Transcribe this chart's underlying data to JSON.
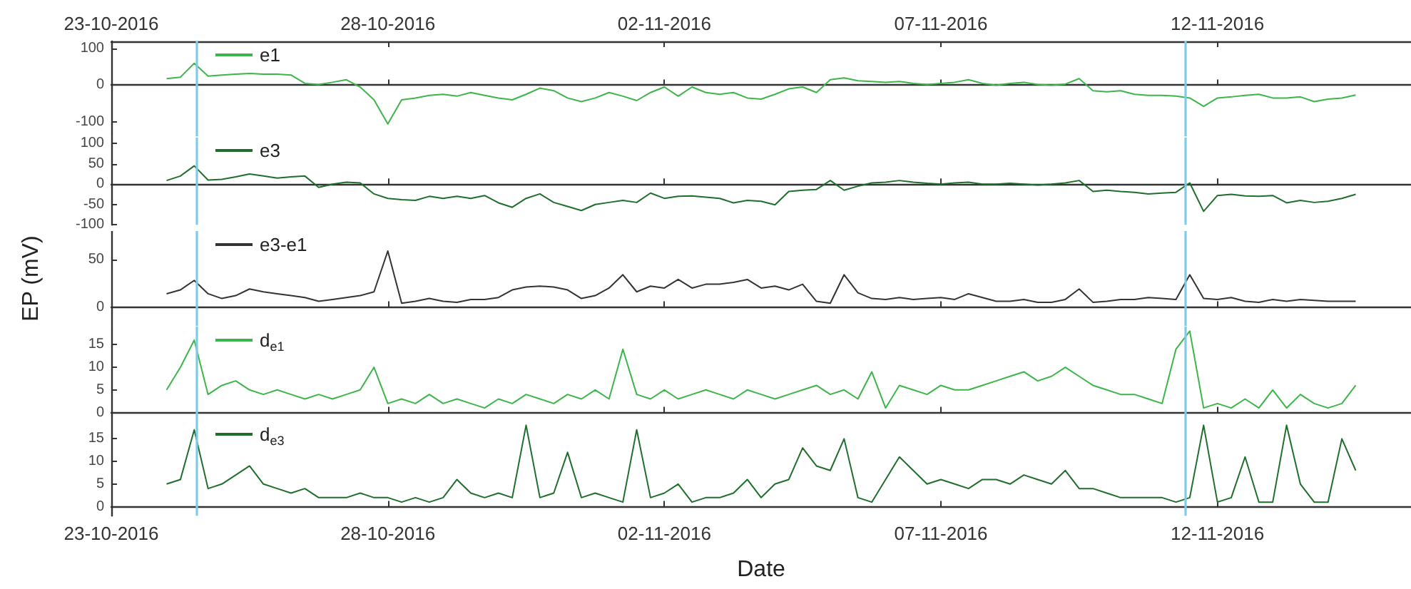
{
  "chart_data": [
    {
      "type": "line",
      "legend": "top left",
      "tick_labels": "y",
      "xlim": [
        "2016-10-23",
        "2016-11-15T12:00"
      ],
      "xticks": [
        {
          "value": "2016-10-23",
          "label": null
        },
        {
          "value": "2016-10-28",
          "label": null
        },
        {
          "value": "2016-11-02",
          "label": null
        },
        {
          "value": "2016-11-07",
          "label": null
        },
        {
          "value": "2016-11-12",
          "label": null
        }
      ],
      "x2lim": [
        "2016-10-23",
        "2016-11-15T12:00"
      ],
      "x2ticks": [
        {
          "value": "2016-10-23",
          "label": "23-10-2016"
        },
        {
          "value": "2016-10-28",
          "label": "28-10-2016"
        },
        {
          "value": "2016-11-02",
          "label": "02-11-2016"
        },
        {
          "value": "2016-11-07",
          "label": "07-11-2016"
        },
        {
          "value": "2016-11-12",
          "label": "12-11-2016"
        }
      ],
      "ylim": [
        -140,
        120
      ],
      "yticks": [
        -100,
        0,
        100
      ],
      "ref_lines": [
        {
          "axis": "x",
          "value": "2016-10-24T13:00",
          "color": "#7ecbe6"
        },
        {
          "axis": "x",
          "value": "2016-11-11T10:00",
          "color": "#7ecbe6"
        }
      ],
      "x": [
        "2016-10-24T00:00",
        "2016-10-24T06:00",
        "2016-10-24T12:00",
        "2016-10-24T18:00",
        "2016-10-25T00:00",
        "2016-10-25T06:00",
        "2016-10-25T12:00",
        "2016-10-25T18:00",
        "2016-10-26T00:00",
        "2016-10-26T06:00",
        "2016-10-26T12:00",
        "2016-10-26T18:00",
        "2016-10-27T00:00",
        "2016-10-27T06:00",
        "2016-10-27T12:00",
        "2016-10-27T18:00",
        "2016-10-28T00:00",
        "2016-10-28T06:00",
        "2016-10-28T12:00",
        "2016-10-28T18:00",
        "2016-10-29T00:00",
        "2016-10-29T06:00",
        "2016-10-29T12:00",
        "2016-10-29T18:00",
        "2016-10-30T00:00",
        "2016-10-30T06:00",
        "2016-10-30T12:00",
        "2016-10-30T18:00",
        "2016-10-31T00:00",
        "2016-10-31T06:00",
        "2016-10-31T12:00",
        "2016-10-31T18:00",
        "2016-11-01T00:00",
        "2016-11-01T06:00",
        "2016-11-01T12:00",
        "2016-11-01T18:00",
        "2016-11-02T00:00",
        "2016-11-02T06:00",
        "2016-11-02T12:00",
        "2016-11-02T18:00",
        "2016-11-03T00:00",
        "2016-11-03T06:00",
        "2016-11-03T12:00",
        "2016-11-03T18:00",
        "2016-11-04T00:00",
        "2016-11-04T06:00",
        "2016-11-04T12:00",
        "2016-11-04T18:00",
        "2016-11-05T00:00",
        "2016-11-05T06:00",
        "2016-11-05T12:00",
        "2016-11-05T18:00",
        "2016-11-06T00:00",
        "2016-11-06T06:00",
        "2016-11-06T12:00",
        "2016-11-06T18:00",
        "2016-11-07T00:00",
        "2016-11-07T06:00",
        "2016-11-07T12:00",
        "2016-11-07T18:00",
        "2016-11-08T00:00",
        "2016-11-08T06:00",
        "2016-11-08T12:00",
        "2016-11-08T18:00",
        "2016-11-09T00:00",
        "2016-11-09T06:00",
        "2016-11-09T12:00",
        "2016-11-09T18:00",
        "2016-11-10T00:00",
        "2016-11-10T06:00",
        "2016-11-10T12:00",
        "2016-11-10T18:00",
        "2016-11-11T00:00",
        "2016-11-11T06:00",
        "2016-11-11T12:00",
        "2016-11-11T18:00",
        "2016-11-12T00:00",
        "2016-11-12T06:00",
        "2016-11-12T12:00",
        "2016-11-12T18:00",
        "2016-11-13T00:00",
        "2016-11-13T06:00",
        "2016-11-13T12:00",
        "2016-11-13T18:00",
        "2016-11-14T00:00",
        "2016-11-14T06:00",
        "2016-11-14T12:00"
      ],
      "series": [
        {
          "name": "e1",
          "color": "#3db54a",
          "values": [
            18,
            22,
            60,
            25,
            28,
            30,
            32,
            30,
            30,
            28,
            5,
            2,
            8,
            15,
            -5,
            -40,
            -106,
            -40,
            -35,
            -28,
            -25,
            -30,
            -20,
            -28,
            -35,
            -40,
            -25,
            -8,
            -15,
            -35,
            -45,
            -35,
            -20,
            -30,
            -42,
            -20,
            -5,
            -30,
            -5,
            -20,
            -25,
            -20,
            -35,
            -38,
            -25,
            -10,
            -5,
            -20,
            15,
            20,
            12,
            10,
            8,
            10,
            5,
            2,
            5,
            8,
            15,
            5,
            0,
            5,
            8,
            2,
            0,
            3,
            18,
            -15,
            -18,
            -15,
            -25,
            -28,
            -28,
            -30,
            -35,
            -58,
            -35,
            -32,
            -28,
            -25,
            -35,
            -35,
            -32,
            -45,
            -38,
            -35,
            -27
          ]
        }
      ]
    },
    {
      "type": "line",
      "legend": "top left",
      "tick_labels": "y",
      "xlim": [
        "2016-10-23",
        "2016-11-15T12:00"
      ],
      "xticks": [
        {
          "value": "2016-10-23",
          "label": null
        },
        {
          "value": "2016-10-28",
          "label": null
        },
        {
          "value": "2016-11-02",
          "label": null
        },
        {
          "value": "2016-11-07",
          "label": null
        },
        {
          "value": "2016-11-12",
          "label": null
        }
      ],
      "ylim": [
        -100,
        115
      ],
      "yticks": [
        -100,
        -50,
        0,
        50,
        100
      ],
      "ref_lines": [
        {
          "axis": "x",
          "value": "2016-10-24T13:00",
          "color": "#7ecbe6"
        },
        {
          "axis": "x",
          "value": "2016-11-11T10:00",
          "color": "#7ecbe6"
        }
      ],
      "x": [
        "2016-10-24T00:00",
        "2016-10-24T06:00",
        "2016-10-24T12:00",
        "2016-10-24T18:00",
        "2016-10-25T00:00",
        "2016-10-25T06:00",
        "2016-10-25T12:00",
        "2016-10-25T18:00",
        "2016-10-26T00:00",
        "2016-10-26T06:00",
        "2016-10-26T12:00",
        "2016-10-26T18:00",
        "2016-10-27T00:00",
        "2016-10-27T06:00",
        "2016-10-27T12:00",
        "2016-10-27T18:00",
        "2016-10-28T00:00",
        "2016-10-28T06:00",
        "2016-10-28T12:00",
        "2016-10-28T18:00",
        "2016-10-29T00:00",
        "2016-10-29T06:00",
        "2016-10-29T12:00",
        "2016-10-29T18:00",
        "2016-10-30T00:00",
        "2016-10-30T06:00",
        "2016-10-30T12:00",
        "2016-10-30T18:00",
        "2016-10-31T00:00",
        "2016-10-31T06:00",
        "2016-10-31T12:00",
        "2016-10-31T18:00",
        "2016-11-01T00:00",
        "2016-11-01T06:00",
        "2016-11-01T12:00",
        "2016-11-01T18:00",
        "2016-11-02T00:00",
        "2016-11-02T06:00",
        "2016-11-02T12:00",
        "2016-11-02T18:00",
        "2016-11-03T00:00",
        "2016-11-03T06:00",
        "2016-11-03T12:00",
        "2016-11-03T18:00",
        "2016-11-04T00:00",
        "2016-11-04T06:00",
        "2016-11-04T12:00",
        "2016-11-04T18:00",
        "2016-11-05T00:00",
        "2016-11-05T06:00",
        "2016-11-05T12:00",
        "2016-11-05T18:00",
        "2016-11-06T00:00",
        "2016-11-06T06:00",
        "2016-11-06T12:00",
        "2016-11-06T18:00",
        "2016-11-07T00:00",
        "2016-11-07T06:00",
        "2016-11-07T12:00",
        "2016-11-07T18:00",
        "2016-11-08T00:00",
        "2016-11-08T06:00",
        "2016-11-08T12:00",
        "2016-11-08T18:00",
        "2016-11-09T00:00",
        "2016-11-09T06:00",
        "2016-11-09T12:00",
        "2016-11-09T18:00",
        "2016-11-10T00:00",
        "2016-11-10T06:00",
        "2016-11-10T12:00",
        "2016-11-10T18:00",
        "2016-11-11T00:00",
        "2016-11-11T06:00",
        "2016-11-11T12:00",
        "2016-11-11T18:00",
        "2016-11-12T00:00",
        "2016-11-12T06:00",
        "2016-11-12T12:00",
        "2016-11-12T18:00",
        "2016-11-13T00:00",
        "2016-11-13T06:00",
        "2016-11-13T12:00",
        "2016-11-13T18:00",
        "2016-11-14T00:00",
        "2016-11-14T06:00",
        "2016-11-14T12:00"
      ],
      "series": [
        {
          "name": "e3",
          "color": "#1f6e2c",
          "values": [
            9,
            20,
            45,
            10,
            12,
            18,
            25,
            20,
            15,
            18,
            20,
            -8,
            0,
            5,
            3,
            -24,
            -35,
            -38,
            -40,
            -30,
            -35,
            -30,
            -35,
            -28,
            -46,
            -57,
            -35,
            -24,
            -45,
            -55,
            -65,
            -50,
            -45,
            -40,
            -45,
            -22,
            -35,
            -30,
            -29,
            -32,
            -35,
            -46,
            -40,
            -42,
            -51,
            -18,
            -15,
            -13,
            9,
            -15,
            -5,
            3,
            5,
            9,
            5,
            2,
            0,
            3,
            5,
            0,
            0,
            2,
            0,
            -2,
            0,
            3,
            9,
            -18,
            -15,
            -18,
            -20,
            -24,
            -22,
            -20,
            3,
            -67,
            -28,
            -25,
            -29,
            -30,
            -28,
            -46,
            -40,
            -45,
            -42,
            -35,
            -25
          ]
        }
      ]
    },
    {
      "type": "line",
      "legend": "top left",
      "tick_labels": "y",
      "ylabel": "EP (mV)",
      "xlim": [
        "2016-10-23",
        "2016-11-15T12:00"
      ],
      "xticks": [
        {
          "value": "2016-10-23",
          "label": null
        },
        {
          "value": "2016-10-28",
          "label": null
        },
        {
          "value": "2016-11-02",
          "label": null
        },
        {
          "value": "2016-11-07",
          "label": null
        },
        {
          "value": "2016-11-12",
          "label": null
        }
      ],
      "ylim": [
        -20,
        80
      ],
      "yticks": [
        0,
        50
      ],
      "ref_lines": [
        {
          "axis": "x",
          "value": "2016-10-24T13:00",
          "color": "#7ecbe6"
        },
        {
          "axis": "x",
          "value": "2016-11-11T10:00",
          "color": "#7ecbe6"
        }
      ],
      "x": [
        "2016-10-24T00:00",
        "2016-10-24T06:00",
        "2016-10-24T12:00",
        "2016-10-24T18:00",
        "2016-10-25T00:00",
        "2016-10-25T06:00",
        "2016-10-25T12:00",
        "2016-10-25T18:00",
        "2016-10-26T00:00",
        "2016-10-26T06:00",
        "2016-10-26T12:00",
        "2016-10-26T18:00",
        "2016-10-27T00:00",
        "2016-10-27T06:00",
        "2016-10-27T12:00",
        "2016-10-27T18:00",
        "2016-10-28T00:00",
        "2016-10-28T06:00",
        "2016-10-28T12:00",
        "2016-10-28T18:00",
        "2016-10-29T00:00",
        "2016-10-29T06:00",
        "2016-10-29T12:00",
        "2016-10-29T18:00",
        "2016-10-30T00:00",
        "2016-10-30T06:00",
        "2016-10-30T12:00",
        "2016-10-30T18:00",
        "2016-10-31T00:00",
        "2016-10-31T06:00",
        "2016-10-31T12:00",
        "2016-10-31T18:00",
        "2016-11-01T00:00",
        "2016-11-01T06:00",
        "2016-11-01T12:00",
        "2016-11-01T18:00",
        "2016-11-02T00:00",
        "2016-11-02T06:00",
        "2016-11-02T12:00",
        "2016-11-02T18:00",
        "2016-11-03T00:00",
        "2016-11-03T06:00",
        "2016-11-03T12:00",
        "2016-11-03T18:00",
        "2016-11-04T00:00",
        "2016-11-04T06:00",
        "2016-11-04T12:00",
        "2016-11-04T18:00",
        "2016-11-05T00:00",
        "2016-11-05T06:00",
        "2016-11-05T12:00",
        "2016-11-05T18:00",
        "2016-11-06T00:00",
        "2016-11-06T06:00",
        "2016-11-06T12:00",
        "2016-11-06T18:00",
        "2016-11-07T00:00",
        "2016-11-07T06:00",
        "2016-11-07T12:00",
        "2016-11-07T18:00",
        "2016-11-08T00:00",
        "2016-11-08T06:00",
        "2016-11-08T12:00",
        "2016-11-08T18:00",
        "2016-11-09T00:00",
        "2016-11-09T06:00",
        "2016-11-09T12:00",
        "2016-11-09T18:00",
        "2016-11-10T00:00",
        "2016-11-10T06:00",
        "2016-11-10T12:00",
        "2016-11-10T18:00",
        "2016-11-11T00:00",
        "2016-11-11T06:00",
        "2016-11-11T12:00",
        "2016-11-11T18:00",
        "2016-11-12T00:00",
        "2016-11-12T06:00",
        "2016-11-12T12:00",
        "2016-11-12T18:00",
        "2016-11-13T00:00",
        "2016-11-13T06:00",
        "2016-11-13T12:00",
        "2016-11-13T18:00",
        "2016-11-14T00:00",
        "2016-11-14T06:00",
        "2016-11-14T12:00"
      ],
      "series": [
        {
          "name": "e3-e1",
          "color": "#333333",
          "values": [
            14,
            18,
            28,
            14,
            9,
            12,
            19,
            16,
            14,
            12,
            10,
            6,
            8,
            10,
            12,
            16,
            59,
            4,
            6,
            9,
            6,
            5,
            8,
            8,
            10,
            18,
            21,
            22,
            21,
            18,
            9,
            12,
            20,
            34,
            16,
            22,
            20,
            29,
            20,
            24,
            24,
            26,
            29,
            20,
            22,
            18,
            24,
            6,
            4,
            34,
            15,
            9,
            8,
            10,
            8,
            9,
            10,
            8,
            14,
            10,
            6,
            6,
            8,
            5,
            5,
            8,
            19,
            5,
            6,
            8,
            8,
            10,
            9,
            8,
            34,
            9,
            8,
            10,
            6,
            5,
            8,
            6,
            8,
            7,
            6,
            6,
            6
          ]
        }
      ]
    },
    {
      "type": "line",
      "legend": "top left",
      "tick_labels": "y",
      "xlim": [
        "2016-10-23",
        "2016-11-15T12:00"
      ],
      "xticks": [
        {
          "value": "2016-10-23",
          "label": null
        },
        {
          "value": "2016-10-28",
          "label": null
        },
        {
          "value": "2016-11-02",
          "label": null
        },
        {
          "value": "2016-11-07",
          "label": null
        },
        {
          "value": "2016-11-12",
          "label": null
        }
      ],
      "ylim": [
        -2,
        19
      ],
      "yticks": [
        0,
        5,
        10,
        15
      ],
      "ref_lines": [
        {
          "axis": "x",
          "value": "2016-10-24T13:00",
          "color": "#7ecbe6"
        },
        {
          "axis": "x",
          "value": "2016-11-11T10:00",
          "color": "#7ecbe6"
        }
      ],
      "x": [
        "2016-10-24T00:00",
        "2016-10-24T06:00",
        "2016-10-24T12:00",
        "2016-10-24T18:00",
        "2016-10-25T00:00",
        "2016-10-25T06:00",
        "2016-10-25T12:00",
        "2016-10-25T18:00",
        "2016-10-26T00:00",
        "2016-10-26T06:00",
        "2016-10-26T12:00",
        "2016-10-26T18:00",
        "2016-10-27T00:00",
        "2016-10-27T06:00",
        "2016-10-27T12:00",
        "2016-10-27T18:00",
        "2016-10-28T00:00",
        "2016-10-28T06:00",
        "2016-10-28T12:00",
        "2016-10-28T18:00",
        "2016-10-29T00:00",
        "2016-10-29T06:00",
        "2016-10-29T12:00",
        "2016-10-29T18:00",
        "2016-10-30T00:00",
        "2016-10-30T06:00",
        "2016-10-30T12:00",
        "2016-10-30T18:00",
        "2016-10-31T00:00",
        "2016-10-31T06:00",
        "2016-10-31T12:00",
        "2016-10-31T18:00",
        "2016-11-01T00:00",
        "2016-11-01T06:00",
        "2016-11-01T12:00",
        "2016-11-01T18:00",
        "2016-11-02T00:00",
        "2016-11-02T06:00",
        "2016-11-02T12:00",
        "2016-11-02T18:00",
        "2016-11-03T00:00",
        "2016-11-03T06:00",
        "2016-11-03T12:00",
        "2016-11-03T18:00",
        "2016-11-04T00:00",
        "2016-11-04T06:00",
        "2016-11-04T12:00",
        "2016-11-04T18:00",
        "2016-11-05T00:00",
        "2016-11-05T06:00",
        "2016-11-05T12:00",
        "2016-11-05T18:00",
        "2016-11-06T00:00",
        "2016-11-06T06:00",
        "2016-11-06T12:00",
        "2016-11-06T18:00",
        "2016-11-07T00:00",
        "2016-11-07T06:00",
        "2016-11-07T12:00",
        "2016-11-07T18:00",
        "2016-11-08T00:00",
        "2016-11-08T06:00",
        "2016-11-08T12:00",
        "2016-11-08T18:00",
        "2016-11-09T00:00",
        "2016-11-09T06:00",
        "2016-11-09T12:00",
        "2016-11-09T18:00",
        "2016-11-10T00:00",
        "2016-11-10T06:00",
        "2016-11-10T12:00",
        "2016-11-10T18:00",
        "2016-11-11T00:00",
        "2016-11-11T06:00",
        "2016-11-11T12:00",
        "2016-11-11T18:00",
        "2016-11-12T00:00",
        "2016-11-12T06:00",
        "2016-11-12T12:00",
        "2016-11-12T18:00",
        "2016-11-13T00:00",
        "2016-11-13T06:00",
        "2016-11-13T12:00",
        "2016-11-13T18:00",
        "2016-11-14T00:00",
        "2016-11-14T06:00",
        "2016-11-14T12:00"
      ],
      "series": [
        {
          "name": "d$_{e1}$",
          "color": "#3db54a",
          "values": [
            5,
            10,
            16,
            4,
            6,
            7,
            5,
            4,
            5,
            4,
            3,
            4,
            3,
            4,
            5,
            10,
            2,
            3,
            2,
            4,
            2,
            3,
            2,
            1,
            3,
            2,
            4,
            3,
            2,
            4,
            3,
            5,
            3,
            14,
            4,
            3,
            5,
            3,
            4,
            5,
            4,
            3,
            5,
            4,
            3,
            4,
            5,
            6,
            4,
            5,
            3,
            9,
            1,
            6,
            5,
            4,
            6,
            5,
            5,
            6,
            7,
            8,
            9,
            7,
            8,
            10,
            8,
            6,
            5,
            4,
            4,
            3,
            2,
            14,
            18,
            1,
            2,
            1,
            3,
            1,
            5,
            1,
            4,
            2,
            1,
            2,
            6
          ]
        }
      ]
    },
    {
      "type": "line",
      "legend": "top left",
      "xlabel": "Date",
      "xlim": [
        "2016-10-23",
        "2016-11-15T12:00"
      ],
      "xticks": [
        {
          "value": "2016-10-23",
          "label": "23-10-2016"
        },
        {
          "value": "2016-10-28",
          "label": "28-10-2016"
        },
        {
          "value": "2016-11-02",
          "label": "02-11-2016"
        },
        {
          "value": "2016-11-07",
          "label": "07-11-2016"
        },
        {
          "value": "2016-11-12",
          "label": "12-11-2016"
        }
      ],
      "ylim": [
        -2,
        19
      ],
      "yticks": [
        0,
        5,
        10,
        15
      ],
      "ref_lines": [
        {
          "axis": "x",
          "value": "2016-10-24T13:00",
          "color": "#7ecbe6"
        },
        {
          "axis": "x",
          "value": "2016-11-11T10:00",
          "color": "#7ecbe6"
        }
      ],
      "x": [
        "2016-10-24T00:00",
        "2016-10-24T06:00",
        "2016-10-24T12:00",
        "2016-10-24T18:00",
        "2016-10-25T00:00",
        "2016-10-25T06:00",
        "2016-10-25T12:00",
        "2016-10-25T18:00",
        "2016-10-26T00:00",
        "2016-10-26T06:00",
        "2016-10-26T12:00",
        "2016-10-26T18:00",
        "2016-10-27T00:00",
        "2016-10-27T06:00",
        "2016-10-27T12:00",
        "2016-10-27T18:00",
        "2016-10-28T00:00",
        "2016-10-28T06:00",
        "2016-10-28T12:00",
        "2016-10-28T18:00",
        "2016-10-29T00:00",
        "2016-10-29T06:00",
        "2016-10-29T12:00",
        "2016-10-29T18:00",
        "2016-10-30T00:00",
        "2016-10-30T06:00",
        "2016-10-30T12:00",
        "2016-10-30T18:00",
        "2016-10-31T00:00",
        "2016-10-31T06:00",
        "2016-10-31T12:00",
        "2016-10-31T18:00",
        "2016-11-01T00:00",
        "2016-11-01T06:00",
        "2016-11-01T12:00",
        "2016-11-01T18:00",
        "2016-11-02T00:00",
        "2016-11-02T06:00",
        "2016-11-02T12:00",
        "2016-11-02T18:00",
        "2016-11-03T00:00",
        "2016-11-03T06:00",
        "2016-11-03T12:00",
        "2016-11-03T18:00",
        "2016-11-04T00:00",
        "2016-11-04T06:00",
        "2016-11-04T12:00",
        "2016-11-04T18:00",
        "2016-11-05T00:00",
        "2016-11-05T06:00",
        "2016-11-05T12:00",
        "2016-11-05T18:00",
        "2016-11-06T00:00",
        "2016-11-06T06:00",
        "2016-11-06T12:00",
        "2016-11-06T18:00",
        "2016-11-07T00:00",
        "2016-11-07T06:00",
        "2016-11-07T12:00",
        "2016-11-07T18:00",
        "2016-11-08T00:00",
        "2016-11-08T06:00",
        "2016-11-08T12:00",
        "2016-11-08T18:00",
        "2016-11-09T00:00",
        "2016-11-09T06:00",
        "2016-11-09T12:00",
        "2016-11-09T18:00",
        "2016-11-10T00:00",
        "2016-11-10T06:00",
        "2016-11-10T12:00",
        "2016-11-10T18:00",
        "2016-11-11T00:00",
        "2016-11-11T06:00",
        "2016-11-11T12:00",
        "2016-11-11T18:00",
        "2016-11-12T00:00",
        "2016-11-12T06:00",
        "2016-11-12T12:00",
        "2016-11-12T18:00",
        "2016-11-13T00:00",
        "2016-11-13T06:00",
        "2016-11-13T12:00",
        "2016-11-13T18:00",
        "2016-11-14T00:00",
        "2016-11-14T06:00",
        "2016-11-14T12:00"
      ],
      "series": [
        {
          "name": "d$_{e3}$",
          "color": "#1f6e2c",
          "values": [
            5,
            6,
            17,
            4,
            5,
            7,
            9,
            5,
            4,
            3,
            4,
            2,
            2,
            2,
            3,
            2,
            2,
            1,
            2,
            1,
            2,
            6,
            3,
            2,
            3,
            2,
            18,
            2,
            3,
            12,
            2,
            3,
            2,
            1,
            17,
            2,
            3,
            5,
            1,
            2,
            2,
            3,
            6,
            2,
            5,
            6,
            13,
            9,
            8,
            15,
            2,
            1,
            6,
            11,
            8,
            5,
            6,
            5,
            4,
            6,
            6,
            5,
            7,
            6,
            5,
            8,
            4,
            4,
            3,
            2,
            2,
            2,
            2,
            1,
            2,
            18,
            1,
            2,
            11,
            1,
            1,
            18,
            5,
            1,
            1,
            15,
            8
          ]
        }
      ]
    }
  ]
}
